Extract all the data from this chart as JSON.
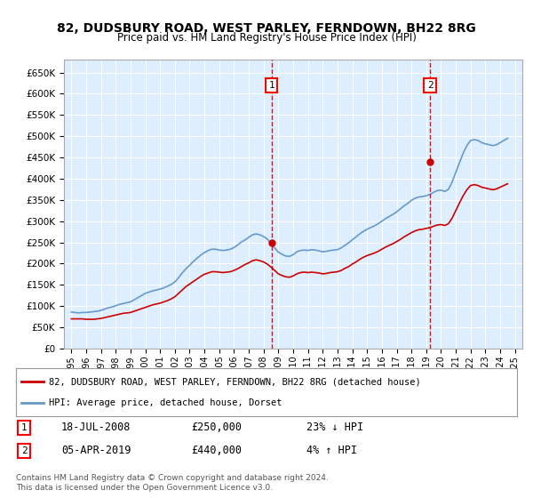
{
  "title": "82, DUDSBURY ROAD, WEST PARLEY, FERNDOWN, BH22 8RG",
  "subtitle": "Price paid vs. HM Land Registry's House Price Index (HPI)",
  "background_color": "#ffffff",
  "plot_bg_color": "#ddeeff",
  "grid_color": "#ffffff",
  "line1_color": "#cc0000",
  "line2_color": "#6699cc",
  "vline_color": "#cc0000",
  "marker1_x": 2008.54,
  "marker2_x": 2019.26,
  "marker1_y": 250000,
  "marker2_y": 440000,
  "ylim": [
    0,
    680000
  ],
  "xlim": [
    1994.5,
    2025.5
  ],
  "yticks": [
    0,
    50000,
    100000,
    150000,
    200000,
    250000,
    300000,
    350000,
    400000,
    450000,
    500000,
    550000,
    600000,
    650000
  ],
  "xticks": [
    1995,
    1996,
    1997,
    1998,
    1999,
    2000,
    2001,
    2002,
    2003,
    2004,
    2005,
    2006,
    2007,
    2008,
    2009,
    2010,
    2011,
    2012,
    2013,
    2014,
    2015,
    2016,
    2017,
    2018,
    2019,
    2020,
    2021,
    2022,
    2023,
    2024,
    2025
  ],
  "legend_line1": "82, DUDSBURY ROAD, WEST PARLEY, FERNDOWN, BH22 8RG (detached house)",
  "legend_line2": "HPI: Average price, detached house, Dorset",
  "annotation1_label": "1",
  "annotation1_date": "18-JUL-2008",
  "annotation1_price": "£250,000",
  "annotation1_hpi": "23% ↓ HPI",
  "annotation2_label": "2",
  "annotation2_date": "05-APR-2019",
  "annotation2_price": "£440,000",
  "annotation2_hpi": "4% ↑ HPI",
  "footer": "Contains HM Land Registry data © Crown copyright and database right 2024.\nThis data is licensed under the Open Government Licence v3.0.",
  "hpi_data_x": [
    1995.0,
    1995.25,
    1995.5,
    1995.75,
    1996.0,
    1996.25,
    1996.5,
    1996.75,
    1997.0,
    1997.25,
    1997.5,
    1997.75,
    1998.0,
    1998.25,
    1998.5,
    1998.75,
    1999.0,
    1999.25,
    1999.5,
    1999.75,
    2000.0,
    2000.25,
    2000.5,
    2000.75,
    2001.0,
    2001.25,
    2001.5,
    2001.75,
    2002.0,
    2002.25,
    2002.5,
    2002.75,
    2003.0,
    2003.25,
    2003.5,
    2003.75,
    2004.0,
    2004.25,
    2004.5,
    2004.75,
    2005.0,
    2005.25,
    2005.5,
    2005.75,
    2006.0,
    2006.25,
    2006.5,
    2006.75,
    2007.0,
    2007.25,
    2007.5,
    2007.75,
    2008.0,
    2008.25,
    2008.5,
    2008.75,
    2009.0,
    2009.25,
    2009.5,
    2009.75,
    2010.0,
    2010.25,
    2010.5,
    2010.75,
    2011.0,
    2011.25,
    2011.5,
    2011.75,
    2012.0,
    2012.25,
    2012.5,
    2012.75,
    2013.0,
    2013.25,
    2013.5,
    2013.75,
    2014.0,
    2014.25,
    2014.5,
    2014.75,
    2015.0,
    2015.25,
    2015.5,
    2015.75,
    2016.0,
    2016.25,
    2016.5,
    2016.75,
    2017.0,
    2017.25,
    2017.5,
    2017.75,
    2018.0,
    2018.25,
    2018.5,
    2018.75,
    2019.0,
    2019.25,
    2019.5,
    2019.75,
    2020.0,
    2020.25,
    2020.5,
    2020.75,
    2021.0,
    2021.25,
    2021.5,
    2021.75,
    2022.0,
    2022.25,
    2022.5,
    2022.75,
    2023.0,
    2023.25,
    2023.5,
    2023.75,
    2024.0,
    2024.25,
    2024.5
  ],
  "hpi_data_y": [
    86000,
    85000,
    84000,
    85000,
    85000,
    86000,
    87000,
    88000,
    90000,
    93000,
    96000,
    98000,
    101000,
    104000,
    106000,
    108000,
    110000,
    115000,
    120000,
    125000,
    130000,
    133000,
    136000,
    138000,
    140000,
    143000,
    147000,
    151000,
    157000,
    167000,
    178000,
    188000,
    196000,
    205000,
    213000,
    220000,
    226000,
    231000,
    234000,
    234000,
    232000,
    231000,
    232000,
    234000,
    238000,
    244000,
    251000,
    256000,
    262000,
    268000,
    270000,
    268000,
    264000,
    258000,
    248000,
    237000,
    227000,
    222000,
    218000,
    217000,
    221000,
    228000,
    231000,
    232000,
    231000,
    233000,
    232000,
    230000,
    228000,
    229000,
    231000,
    232000,
    233000,
    237000,
    243000,
    249000,
    256000,
    263000,
    270000,
    276000,
    281000,
    285000,
    289000,
    294000,
    300000,
    306000,
    311000,
    316000,
    322000,
    329000,
    336000,
    342000,
    349000,
    354000,
    357000,
    358000,
    360000,
    363000,
    368000,
    372000,
    373000,
    370000,
    375000,
    392000,
    415000,
    438000,
    460000,
    478000,
    490000,
    492000,
    490000,
    485000,
    482000,
    480000,
    478000,
    480000,
    485000,
    490000,
    495000
  ],
  "price_data_x": [
    1995.0,
    1995.25,
    1995.5,
    1995.75,
    1996.0,
    1996.25,
    1996.5,
    1996.75,
    1997.0,
    1997.25,
    1997.5,
    1997.75,
    1998.0,
    1998.25,
    1998.5,
    1998.75,
    1999.0,
    1999.25,
    1999.5,
    1999.75,
    2000.0,
    2000.25,
    2000.5,
    2000.75,
    2001.0,
    2001.25,
    2001.5,
    2001.75,
    2002.0,
    2002.25,
    2002.5,
    2002.75,
    2003.0,
    2003.25,
    2003.5,
    2003.75,
    2004.0,
    2004.25,
    2004.5,
    2004.75,
    2005.0,
    2005.25,
    2005.5,
    2005.75,
    2006.0,
    2006.25,
    2006.5,
    2006.75,
    2007.0,
    2007.25,
    2007.5,
    2007.75,
    2008.0,
    2008.25,
    2008.5,
    2008.75,
    2009.0,
    2009.25,
    2009.5,
    2009.75,
    2010.0,
    2010.25,
    2010.5,
    2010.75,
    2011.0,
    2011.25,
    2011.5,
    2011.75,
    2012.0,
    2012.25,
    2012.5,
    2012.75,
    2013.0,
    2013.25,
    2013.5,
    2013.75,
    2014.0,
    2014.25,
    2014.5,
    2014.75,
    2015.0,
    2015.25,
    2015.5,
    2015.75,
    2016.0,
    2016.25,
    2016.5,
    2016.75,
    2017.0,
    2017.25,
    2017.5,
    2017.75,
    2018.0,
    2018.25,
    2018.5,
    2018.75,
    2019.0,
    2019.25,
    2019.5,
    2019.75,
    2020.0,
    2020.25,
    2020.5,
    2020.75,
    2021.0,
    2021.25,
    2021.5,
    2021.75,
    2022.0,
    2022.25,
    2022.5,
    2022.75,
    2023.0,
    2023.25,
    2023.5,
    2023.75,
    2024.0,
    2024.25,
    2024.5
  ],
  "price_data_y": [
    70000,
    70000,
    70000,
    70000,
    69000,
    69000,
    69000,
    70000,
    71000,
    73000,
    75000,
    77000,
    79000,
    81000,
    83000,
    84000,
    85000,
    88000,
    91000,
    94000,
    97000,
    100000,
    103000,
    105000,
    107000,
    110000,
    113000,
    117000,
    122000,
    130000,
    138000,
    146000,
    152000,
    158000,
    164000,
    170000,
    175000,
    178000,
    181000,
    181000,
    180000,
    179000,
    180000,
    181000,
    184000,
    188000,
    193000,
    198000,
    202000,
    207000,
    209000,
    207000,
    204000,
    199000,
    192000,
    184000,
    176000,
    172000,
    169000,
    168000,
    171000,
    176000,
    179000,
    180000,
    179000,
    180000,
    179000,
    178000,
    176000,
    177000,
    179000,
    180000,
    181000,
    184000,
    189000,
    193000,
    199000,
    204000,
    210000,
    215000,
    219000,
    222000,
    225000,
    229000,
    234000,
    239000,
    243000,
    247000,
    252000,
    257000,
    263000,
    268000,
    273000,
    277000,
    280000,
    281000,
    283000,
    285000,
    288000,
    291000,
    292000,
    290000,
    294000,
    307000,
    325000,
    343000,
    360000,
    374000,
    384000,
    386000,
    384000,
    380000,
    378000,
    376000,
    374000,
    376000,
    380000,
    384000,
    388000
  ]
}
